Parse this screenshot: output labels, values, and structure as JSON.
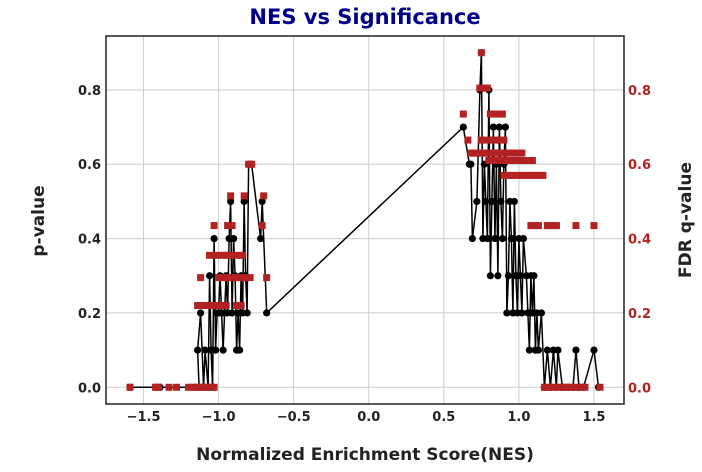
{
  "chart_data": {
    "type": "scatter",
    "title": "NES vs Significance",
    "xlabel": "Normalized Enrichment Score(NES)",
    "ylabel": "p-value",
    "y2label": "FDR q-value",
    "xlim": [
      -1.75,
      1.7
    ],
    "ylim": [
      -0.045,
      0.945
    ],
    "y2lim": [
      -0.045,
      0.945
    ],
    "xticks": [
      "−1.5",
      "−1.0",
      "−0.5",
      "0.0",
      "0.5",
      "1.0",
      "1.5"
    ],
    "xtick_values": [
      -1.5,
      -1.0,
      -0.5,
      0.0,
      0.5,
      1.0,
      1.5
    ],
    "yticks": [
      "0.0",
      "0.2",
      "0.4",
      "0.6",
      "0.8"
    ],
    "ytick_values": [
      0.0,
      0.2,
      0.4,
      0.6,
      0.8
    ],
    "y2ticks": [
      "0.0",
      "0.2",
      "0.4",
      "0.6",
      "0.8"
    ],
    "y2tick_values": [
      0.0,
      0.2,
      0.4,
      0.6,
      0.8
    ],
    "grid": true,
    "colors": {
      "pvalue": "#000000",
      "fdr": "#b22222",
      "title": "#00008b",
      "right_axis": "#b22222"
    },
    "series": [
      {
        "marker": "circle",
        "line": true,
        "axis": "left",
        "color": "#000000",
        "points": [
          [
            -1.59,
            0.0
          ],
          [
            -1.42,
            0.0
          ],
          [
            -1.39,
            0.0
          ],
          [
            -1.13,
            0.0
          ],
          [
            -1.14,
            0.1
          ],
          [
            -1.12,
            0.2
          ],
          [
            -1.1,
            0.0
          ],
          [
            -1.09,
            0.1
          ],
          [
            -1.07,
            0.0
          ],
          [
            -1.06,
            0.3
          ],
          [
            -1.05,
            0.1
          ],
          [
            -1.04,
            0.0
          ],
          [
            -1.03,
            0.4
          ],
          [
            -1.02,
            0.1
          ],
          [
            -1.01,
            0.2
          ],
          [
            -1.0,
            0.2
          ],
          [
            -0.99,
            0.3
          ],
          [
            -0.98,
            0.2
          ],
          [
            -0.97,
            0.1
          ],
          [
            -0.96,
            0.2
          ],
          [
            -0.95,
            0.3
          ],
          [
            -0.94,
            0.2
          ],
          [
            -0.93,
            0.4
          ],
          [
            -0.92,
            0.5
          ],
          [
            -0.91,
            0.2
          ],
          [
            -0.9,
            0.4
          ],
          [
            -0.89,
            0.3
          ],
          [
            -0.88,
            0.1
          ],
          [
            -0.87,
            0.2
          ],
          [
            -0.86,
            0.1
          ],
          [
            -0.85,
            0.3
          ],
          [
            -0.84,
            0.2
          ],
          [
            -0.83,
            0.5
          ],
          [
            -0.82,
            0.3
          ],
          [
            -0.81,
            0.2
          ],
          [
            -0.8,
            0.6
          ],
          [
            -0.78,
            0.6
          ],
          [
            -0.72,
            0.4
          ],
          [
            -0.71,
            0.5
          ],
          [
            -0.68,
            0.2
          ],
          [
            0.63,
            0.7
          ],
          [
            0.67,
            0.6
          ],
          [
            0.68,
            0.6
          ],
          [
            0.69,
            0.4
          ],
          [
            0.72,
            0.5
          ],
          [
            0.74,
            0.8
          ],
          [
            0.75,
            0.9
          ],
          [
            0.76,
            0.4
          ],
          [
            0.77,
            0.6
          ],
          [
            0.78,
            0.5
          ],
          [
            0.79,
            0.4
          ],
          [
            0.8,
            0.8
          ],
          [
            0.81,
            0.3
          ],
          [
            0.82,
            0.5
          ],
          [
            0.83,
            0.7
          ],
          [
            0.84,
            0.4
          ],
          [
            0.85,
            0.6
          ],
          [
            0.86,
            0.3
          ],
          [
            0.87,
            0.7
          ],
          [
            0.88,
            0.5
          ],
          [
            0.89,
            0.4
          ],
          [
            0.9,
            0.6
          ],
          [
            0.91,
            0.7
          ],
          [
            0.92,
            0.2
          ],
          [
            0.93,
            0.3
          ],
          [
            0.94,
            0.5
          ],
          [
            0.95,
            0.4
          ],
          [
            0.96,
            0.2
          ],
          [
            0.97,
            0.5
          ],
          [
            0.98,
            0.3
          ],
          [
            0.99,
            0.2
          ],
          [
            1.0,
            0.4
          ],
          [
            1.01,
            0.3
          ],
          [
            1.02,
            0.2
          ],
          [
            1.03,
            0.4
          ],
          [
            1.05,
            0.3
          ],
          [
            1.06,
            0.2
          ],
          [
            1.07,
            0.1
          ],
          [
            1.08,
            0.3
          ],
          [
            1.09,
            0.2
          ],
          [
            1.1,
            0.3
          ],
          [
            1.11,
            0.1
          ],
          [
            1.12,
            0.2
          ],
          [
            1.13,
            0.1
          ],
          [
            1.15,
            0.2
          ],
          [
            1.17,
            0.0
          ],
          [
            1.19,
            0.1
          ],
          [
            1.21,
            0.0
          ],
          [
            1.23,
            0.1
          ],
          [
            1.25,
            0.0
          ],
          [
            1.26,
            0.1
          ],
          [
            1.29,
            0.0
          ],
          [
            1.33,
            0.0
          ],
          [
            1.36,
            0.0
          ],
          [
            1.38,
            0.1
          ],
          [
            1.4,
            0.0
          ],
          [
            1.43,
            0.0
          ],
          [
            1.5,
            0.1
          ],
          [
            1.53,
            0.0
          ]
        ]
      },
      {
        "marker": "square",
        "line": false,
        "axis": "right",
        "color": "#b22222",
        "points": [
          [
            -1.59,
            0.0
          ],
          [
            -1.42,
            0.0
          ],
          [
            -1.4,
            0.0
          ],
          [
            -1.33,
            0.0
          ],
          [
            -1.28,
            0.0
          ],
          [
            -1.2,
            0.0
          ],
          [
            -1.17,
            0.0
          ],
          [
            -1.15,
            0.0
          ],
          [
            -1.13,
            0.0
          ],
          [
            -1.11,
            0.0
          ],
          [
            -1.09,
            0.0
          ],
          [
            -1.07,
            0.0
          ],
          [
            -1.05,
            0.0
          ],
          [
            -1.03,
            0.0
          ],
          [
            -1.14,
            0.22
          ],
          [
            -1.1,
            0.22
          ],
          [
            -1.07,
            0.22
          ],
          [
            -1.04,
            0.22
          ],
          [
            -1.01,
            0.22
          ],
          [
            -0.98,
            0.22
          ],
          [
            -0.95,
            0.22
          ],
          [
            -0.88,
            0.22
          ],
          [
            -0.85,
            0.22
          ],
          [
            -1.12,
            0.295
          ],
          [
            -1.0,
            0.295
          ],
          [
            -0.97,
            0.295
          ],
          [
            -0.94,
            0.295
          ],
          [
            -0.91,
            0.295
          ],
          [
            -0.88,
            0.295
          ],
          [
            -0.85,
            0.295
          ],
          [
            -0.82,
            0.295
          ],
          [
            -0.79,
            0.295
          ],
          [
            -0.68,
            0.295
          ],
          [
            -1.06,
            0.355
          ],
          [
            -1.02,
            0.355
          ],
          [
            -0.98,
            0.355
          ],
          [
            -0.95,
            0.355
          ],
          [
            -0.92,
            0.355
          ],
          [
            -0.88,
            0.355
          ],
          [
            -0.84,
            0.355
          ],
          [
            -1.03,
            0.435
          ],
          [
            -0.94,
            0.435
          ],
          [
            -0.91,
            0.435
          ],
          [
            -0.71,
            0.435
          ],
          [
            -0.92,
            0.515
          ],
          [
            -0.83,
            0.515
          ],
          [
            -0.7,
            0.515
          ],
          [
            -0.8,
            0.6
          ],
          [
            -0.78,
            0.6
          ],
          [
            0.63,
            0.735
          ],
          [
            0.66,
            0.665
          ],
          [
            0.68,
            0.63
          ],
          [
            0.7,
            0.63
          ],
          [
            0.72,
            0.63
          ],
          [
            0.74,
            0.63
          ],
          [
            0.76,
            0.63
          ],
          [
            0.78,
            0.63
          ],
          [
            0.8,
            0.63
          ],
          [
            0.82,
            0.63
          ],
          [
            0.84,
            0.63
          ],
          [
            0.86,
            0.63
          ],
          [
            0.88,
            0.63
          ],
          [
            0.9,
            0.63
          ],
          [
            0.92,
            0.63
          ],
          [
            0.94,
            0.63
          ],
          [
            0.96,
            0.63
          ],
          [
            0.98,
            0.63
          ],
          [
            1.0,
            0.63
          ],
          [
            1.02,
            0.63
          ],
          [
            0.75,
            0.665
          ],
          [
            0.78,
            0.665
          ],
          [
            0.81,
            0.665
          ],
          [
            0.84,
            0.665
          ],
          [
            0.87,
            0.665
          ],
          [
            0.9,
            0.665
          ],
          [
            0.8,
            0.61
          ],
          [
            0.83,
            0.61
          ],
          [
            0.86,
            0.61
          ],
          [
            0.89,
            0.61
          ],
          [
            0.92,
            0.61
          ],
          [
            0.95,
            0.61
          ],
          [
            0.98,
            0.61
          ],
          [
            1.01,
            0.61
          ],
          [
            1.04,
            0.61
          ],
          [
            1.07,
            0.61
          ],
          [
            1.09,
            0.61
          ],
          [
            0.9,
            0.57
          ],
          [
            0.93,
            0.57
          ],
          [
            0.96,
            0.57
          ],
          [
            0.99,
            0.57
          ],
          [
            1.02,
            0.57
          ],
          [
            1.05,
            0.57
          ],
          [
            1.08,
            0.57
          ],
          [
            1.11,
            0.57
          ],
          [
            1.13,
            0.57
          ],
          [
            1.16,
            0.57
          ],
          [
            0.81,
            0.735
          ],
          [
            0.83,
            0.735
          ],
          [
            0.86,
            0.735
          ],
          [
            0.89,
            0.735
          ],
          [
            0.74,
            0.805
          ],
          [
            0.76,
            0.805
          ],
          [
            0.79,
            0.805
          ],
          [
            0.75,
            0.9
          ],
          [
            1.08,
            0.435
          ],
          [
            1.11,
            0.435
          ],
          [
            1.13,
            0.435
          ],
          [
            1.19,
            0.435
          ],
          [
            1.22,
            0.435
          ],
          [
            1.25,
            0.435
          ],
          [
            1.38,
            0.435
          ],
          [
            1.5,
            0.435
          ],
          [
            1.17,
            0.0
          ],
          [
            1.2,
            0.0
          ],
          [
            1.23,
            0.0
          ],
          [
            1.26,
            0.0
          ],
          [
            1.29,
            0.0
          ],
          [
            1.32,
            0.0
          ],
          [
            1.35,
            0.0
          ],
          [
            1.38,
            0.0
          ],
          [
            1.41,
            0.0
          ],
          [
            1.44,
            0.0
          ],
          [
            1.54,
            0.0
          ]
        ]
      }
    ]
  }
}
